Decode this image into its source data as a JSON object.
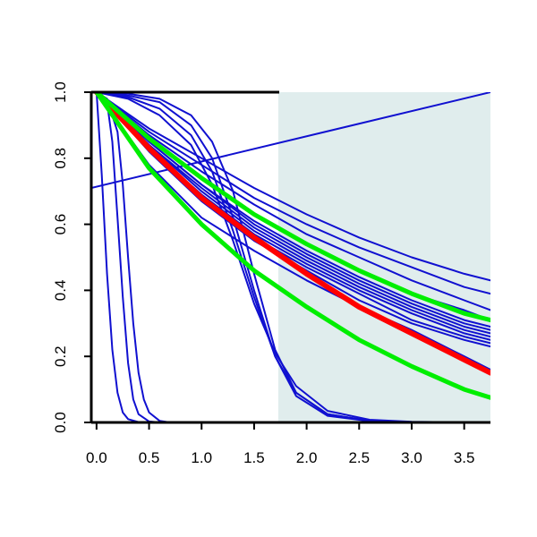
{
  "chart_data": {
    "type": "line",
    "title": "",
    "xlabel": "",
    "ylabel": "",
    "xlim": [
      -0.05,
      3.75
    ],
    "ylim": [
      0.0,
      1.0
    ],
    "x_ticks": [
      "0.0",
      "0.5",
      "1.0",
      "1.5",
      "2.0",
      "2.5",
      "3.0",
      "3.5"
    ],
    "y_ticks": [
      "0.0",
      "0.2",
      "0.4",
      "0.6",
      "0.8",
      "1.0"
    ],
    "shaded_region": {
      "x_from": 1.73,
      "x_to": 3.75,
      "color": "#e0eded"
    },
    "grid": false,
    "legend": "none",
    "colors": {
      "blue": "#1010d0",
      "red": "#ff0000",
      "green": "#00ee00",
      "axis": "#000000"
    },
    "series": [
      {
        "color": "blue",
        "width": 2,
        "x": [
          0,
          0.5,
          1,
          1.5,
          2,
          2.5,
          3,
          3.5,
          3.75
        ],
        "y": [
          1,
          0.89,
          0.8,
          0.71,
          0.63,
          0.56,
          0.5,
          0.45,
          0.43
        ]
      },
      {
        "color": "blue",
        "width": 2,
        "x": [
          0,
          0.5,
          1,
          1.5,
          2,
          2.5,
          3,
          3.5,
          3.75
        ],
        "y": [
          1,
          0.88,
          0.78,
          0.68,
          0.6,
          0.53,
          0.47,
          0.41,
          0.39
        ]
      },
      {
        "color": "blue",
        "width": 2,
        "x": [
          0,
          0.5,
          1,
          1.5,
          2,
          2.5,
          3,
          3.5,
          3.75
        ],
        "y": [
          1,
          0.87,
          0.76,
          0.66,
          0.57,
          0.5,
          0.43,
          0.37,
          0.34
        ]
      },
      {
        "color": "blue",
        "width": 2,
        "x": [
          0,
          0.5,
          1,
          1.5,
          2,
          2.5,
          3,
          3.5,
          3.75
        ],
        "y": [
          1,
          0.86,
          0.74,
          0.63,
          0.54,
          0.46,
          0.39,
          0.34,
          0.31
        ]
      },
      {
        "color": "blue",
        "width": 2,
        "x": [
          0,
          0.5,
          1,
          1.5,
          2,
          2.5,
          3,
          3.5,
          3.75
        ],
        "y": [
          1,
          0.85,
          0.72,
          0.61,
          0.52,
          0.44,
          0.37,
          0.31,
          0.29
        ]
      },
      {
        "color": "blue",
        "width": 2,
        "x": [
          0,
          0.5,
          1,
          1.5,
          2,
          2.5,
          3,
          3.5,
          3.75
        ],
        "y": [
          1,
          0.85,
          0.72,
          0.6,
          0.51,
          0.43,
          0.36,
          0.3,
          0.28
        ]
      },
      {
        "color": "blue",
        "width": 2,
        "x": [
          0,
          0.5,
          1,
          1.5,
          2,
          2.5,
          3,
          3.5,
          3.75
        ],
        "y": [
          1,
          0.84,
          0.71,
          0.59,
          0.5,
          0.42,
          0.35,
          0.29,
          0.27
        ]
      },
      {
        "color": "blue",
        "width": 2,
        "x": [
          0,
          0.5,
          1,
          1.5,
          2,
          2.5,
          3,
          3.5,
          3.75
        ],
        "y": [
          1,
          0.84,
          0.7,
          0.58,
          0.49,
          0.41,
          0.34,
          0.28,
          0.26
        ]
      },
      {
        "color": "blue",
        "width": 2,
        "x": [
          0,
          0.5,
          1,
          1.5,
          2,
          2.5,
          3,
          3.5,
          3.75
        ],
        "y": [
          1,
          0.83,
          0.69,
          0.57,
          0.48,
          0.4,
          0.33,
          0.27,
          0.25
        ]
      },
      {
        "color": "blue",
        "width": 2,
        "x": [
          0,
          0.5,
          1,
          1.5,
          2,
          2.5,
          3,
          3.5,
          3.75
        ],
        "y": [
          1,
          0.83,
          0.68,
          0.56,
          0.47,
          0.39,
          0.31,
          0.26,
          0.24
        ]
      },
      {
        "color": "blue",
        "width": 2,
        "x": [
          0,
          0.5,
          1,
          1.5,
          2,
          2.5,
          3,
          3.5,
          3.75
        ],
        "y": [
          1,
          0.82,
          0.67,
          0.55,
          0.46,
          0.37,
          0.3,
          0.25,
          0.23
        ]
      },
      {
        "color": "blue",
        "width": 2,
        "x": [
          0,
          0.5,
          1,
          1.5,
          2,
          2.5,
          3,
          3.5,
          3.75
        ],
        "y": [
          1,
          0.78,
          0.62,
          0.52,
          0.43,
          0.35,
          0.28,
          0.2,
          0.16
        ]
      },
      {
        "color": "blue",
        "width": 2,
        "x": [
          -0.05,
          3.75
        ],
        "y": [
          0.71,
          1.0
        ]
      },
      {
        "color": "blue",
        "width": 2,
        "x": [
          0,
          0.3,
          0.6,
          0.9,
          1.1,
          1.3,
          1.5,
          1.7,
          1.9,
          2.2,
          2.6,
          3,
          3.75
        ],
        "y": [
          1,
          0.995,
          0.98,
          0.93,
          0.85,
          0.7,
          0.45,
          0.22,
          0.09,
          0.025,
          0.005,
          0.001,
          0
        ]
      },
      {
        "color": "blue",
        "width": 2,
        "x": [
          0,
          0.3,
          0.6,
          0.9,
          1.1,
          1.3,
          1.5,
          1.7,
          1.9,
          2.2,
          2.6,
          3,
          3.75
        ],
        "y": [
          1,
          0.99,
          0.97,
          0.9,
          0.8,
          0.62,
          0.4,
          0.2,
          0.08,
          0.02,
          0.004,
          0.001,
          0
        ]
      },
      {
        "color": "blue",
        "width": 2,
        "x": [
          0,
          0.3,
          0.6,
          0.9,
          1.1,
          1.3,
          1.5,
          1.7,
          1.9,
          2.2,
          2.6,
          3,
          3.75
        ],
        "y": [
          1,
          0.985,
          0.95,
          0.87,
          0.76,
          0.58,
          0.38,
          0.2,
          0.09,
          0.025,
          0.005,
          0.001,
          0
        ]
      },
      {
        "color": "blue",
        "width": 2,
        "x": [
          0,
          0.3,
          0.6,
          0.9,
          1.1,
          1.3,
          1.5,
          1.7,
          1.9,
          2.2,
          2.6,
          3,
          3.75
        ],
        "y": [
          1,
          0.98,
          0.93,
          0.84,
          0.72,
          0.55,
          0.36,
          0.21,
          0.11,
          0.035,
          0.008,
          0.002,
          0
        ]
      },
      {
        "color": "blue",
        "width": 2,
        "x": [
          0,
          0.05,
          0.1,
          0.15,
          0.2,
          0.25,
          0.3,
          0.4,
          0.5,
          0.6,
          3.75
        ],
        "y": [
          1,
          0.75,
          0.45,
          0.22,
          0.09,
          0.03,
          0.01,
          0.001,
          0,
          0,
          0
        ]
      },
      {
        "color": "blue",
        "width": 2,
        "x": [
          0,
          0.1,
          0.15,
          0.2,
          0.25,
          0.3,
          0.35,
          0.4,
          0.5,
          0.6,
          3.75
        ],
        "y": [
          1,
          0.97,
          0.85,
          0.62,
          0.38,
          0.18,
          0.07,
          0.025,
          0.003,
          0,
          0
        ]
      },
      {
        "color": "blue",
        "width": 2,
        "x": [
          0,
          0.1,
          0.2,
          0.25,
          0.3,
          0.35,
          0.4,
          0.45,
          0.5,
          0.6,
          0.7,
          3.75
        ],
        "y": [
          1,
          0.98,
          0.88,
          0.72,
          0.5,
          0.3,
          0.15,
          0.07,
          0.03,
          0.005,
          0,
          0
        ]
      },
      {
        "color": "red",
        "width": 6,
        "x": [
          0,
          0.5,
          1,
          1.5,
          2,
          2.5,
          3,
          3.5,
          3.75
        ],
        "y": [
          1,
          0.83,
          0.68,
          0.56,
          0.45,
          0.35,
          0.27,
          0.19,
          0.15
        ]
      },
      {
        "color": "green",
        "width": 5,
        "x": [
          0,
          0.5,
          1,
          1.5,
          2,
          2.5,
          3,
          3.5,
          3.75
        ],
        "y": [
          1,
          0.86,
          0.74,
          0.63,
          0.54,
          0.46,
          0.39,
          0.33,
          0.31
        ]
      },
      {
        "color": "green",
        "width": 5,
        "x": [
          0,
          0.5,
          1,
          1.5,
          2,
          2.5,
          3,
          3.5,
          3.75
        ],
        "y": [
          1,
          0.77,
          0.6,
          0.46,
          0.35,
          0.25,
          0.17,
          0.1,
          0.075
        ]
      }
    ]
  }
}
